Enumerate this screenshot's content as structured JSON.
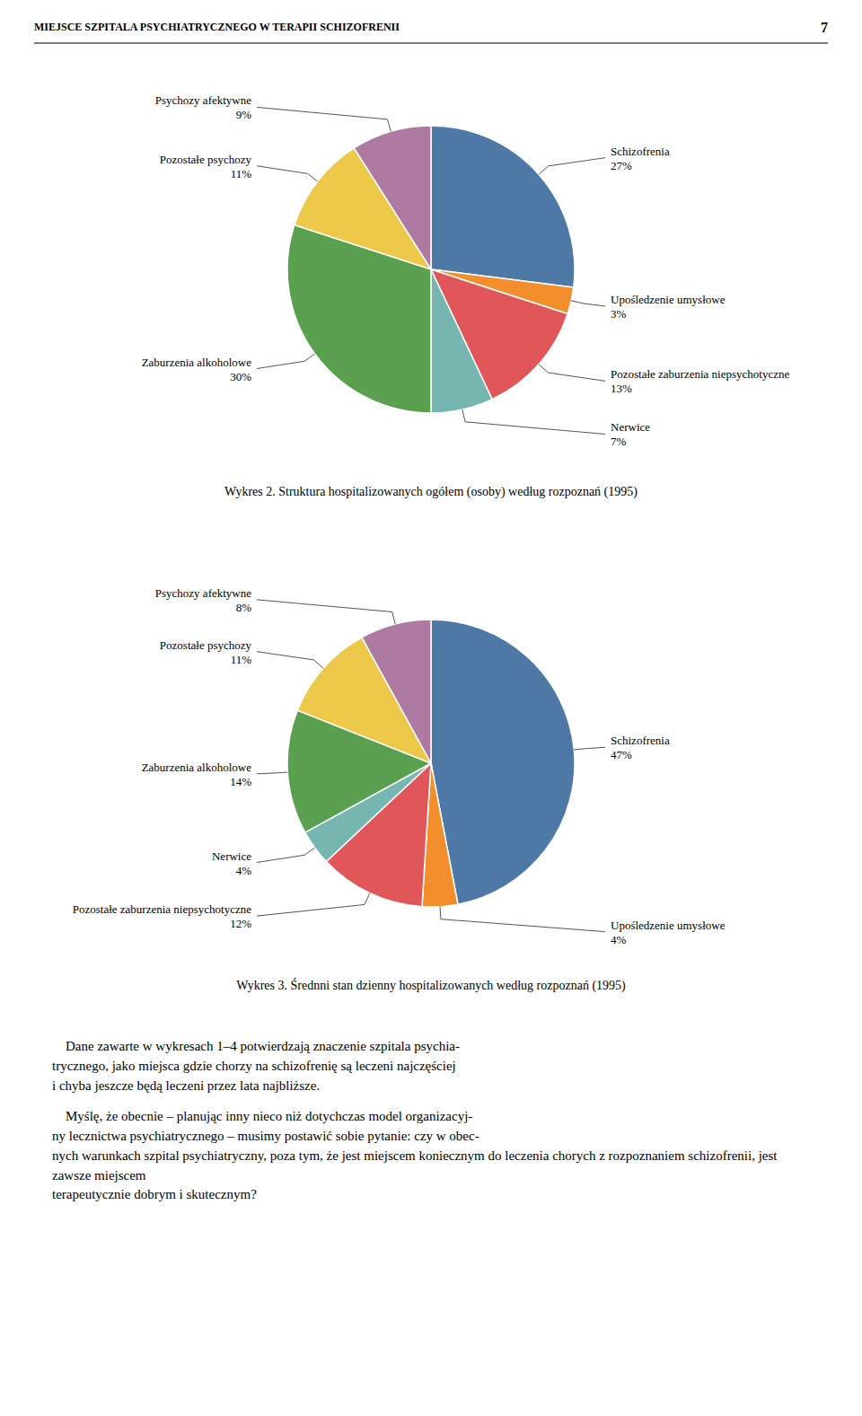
{
  "header_text": "MIEJSCE SZPITALA PSYCHIATRYCZNEGO W TERAPII SCHIZOFRENII",
  "page_number": "7",
  "chart_data": [
    {
      "type": "pie",
      "title": "Wykres 2. Struktura hospitalizowanych ogółem (osoby) według rozpoznań (1995)",
      "categories": [
        "Schizofrenia",
        "Upośledzenie umysłowe",
        "Pozostałe zaburzenia niepsychotyczne",
        "Nerwice",
        "Zaburzenia alkoholowe",
        "Pozostałe psychozy",
        "Psychozy afektywne"
      ],
      "values": [
        27,
        3,
        13,
        7,
        30,
        11,
        9
      ],
      "value_labels": [
        "27%",
        "3%",
        "13%",
        "7%",
        "30%",
        "11%",
        "9%"
      ],
      "data_labels": true
    },
    {
      "type": "pie",
      "title": "Wykres 3. Średnni stan dzienny hospitalizowanych według rozpoznań (1995)",
      "categories": [
        "Schizofrenia",
        "Upośledzenie umysłowe",
        "Pozostałe zaburzenia niepsychotyczne",
        "Nerwice",
        "Zaburzenia alkoholowe",
        "Pozostałe psychozy",
        "Psychozy afektywne"
      ],
      "values": [
        47,
        4,
        12,
        4,
        14,
        11,
        8
      ],
      "value_labels": [
        "47%",
        "4%",
        "12%",
        "4%",
        "14%",
        "11%",
        "8%"
      ],
      "data_labels": true
    }
  ],
  "body_text": [
    "    Dane zawarte w wykresach 1–4 potwierdzają znaczenie szpitala psychia-\ntrycznego, jako miejsca gdzie chorzy na schizofrenię są leczeni najczęściej\ni chyba jeszcze będą leczeni przez lata najbliższe.",
    "    Myślę, że obecnie – planując inny nieco niż dotychczas model organizacyj-\nny lecznictwa psychiatrycznego – musimy postawić sobie pytanie: czy w obec-\nnych warunkach szpital psychiatryczny, poza tym, że jest miejscem koniecznym do leczenia chorych z rozpoznaniem schizofrenii, jest zawsze miejscem\nterapeutycznie dobrym i skutecznym?"
  ]
}
